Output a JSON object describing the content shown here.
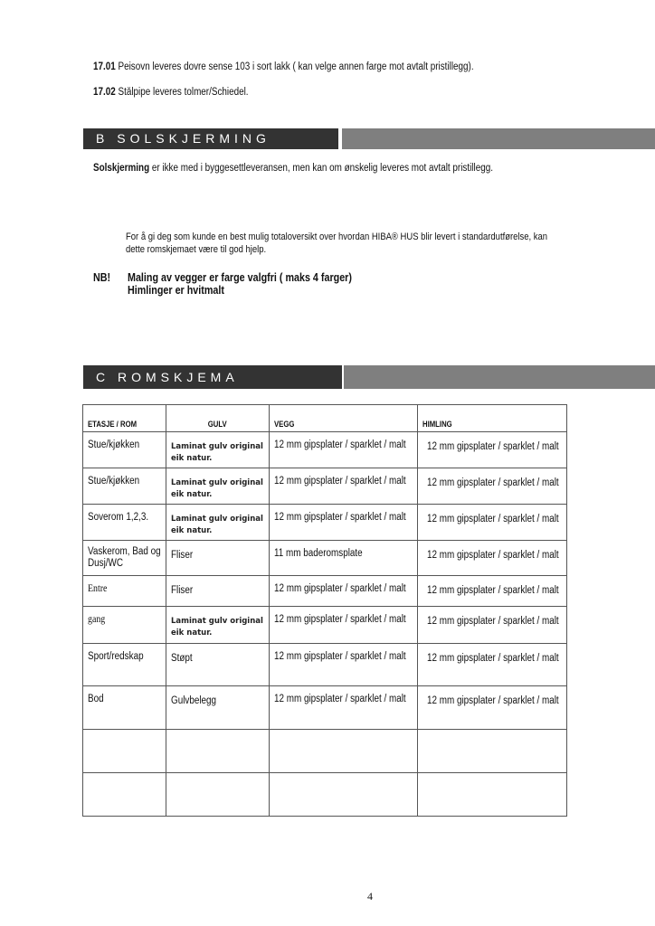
{
  "items": [
    {
      "number": "17.01",
      "text": "Peisovn leveres dovre sense 103 i sort lakk ( kan velge annen farge mot avtalt pristillegg)."
    },
    {
      "number": "17.02",
      "text": "Stålpipe leveres tolmer/Schiedel."
    }
  ],
  "section_b": {
    "title": "B   SOLSKJERMING",
    "lead_bold": "Solskjerming",
    "lead_text": " er ikke med i byggesettleveransen, men kan om ønskelig leveres mot avtalt pristillegg."
  },
  "info": {
    "line1": "For å gi deg som kunde en best mulig totaloversikt over hvordan HIBA® HUS blir levert i standardutførelse, kan",
    "line2": "dette romskjemaet være til god hjelp."
  },
  "nb": {
    "label": "NB!",
    "line1": "Maling av vegger er farge valgfri ( maks 4 farger)",
    "line2": "Himlinger er hvitmalt"
  },
  "section_c": {
    "title": "C   ROMSKJEMA"
  },
  "table": {
    "headers": [
      "ETASJE / ROM",
      "GULV",
      "VEGG",
      "HIMLING"
    ],
    "rows": [
      [
        "Stue/kjøkken",
        "Laminat gulv original eik natur.",
        "12 mm  gipsplater / sparklet / malt",
        "12 mm  gipsplater / sparklet / malt"
      ],
      [
        "Stue/kjøkken",
        "Laminat gulv original eik natur.",
        "12 mm  gipsplater / sparklet / malt",
        "12 mm  gipsplater / sparklet / malt"
      ],
      [
        "Soverom 1,2,3.",
        "Laminat gulv original eik natur.",
        "12 mm  gipsplater / sparklet / malt",
        "12 mm  gipsplater / sparklet / malt"
      ],
      [
        "Vaskerom, Bad og Dusj/WC",
        "Fliser",
        "11 mm baderomsplate",
        "12 mm  gipsplater / sparklet / malt"
      ],
      [
        "Entre",
        "Fliser",
        "12 mm  gipsplater / sparklet / malt",
        "12 mm  gipsplater / sparklet / malt"
      ],
      [
        "gang",
        "Laminat gulv original eik natur.",
        "12 mm  gipsplater / sparklet / malt",
        "12 mm  gipsplater / sparklet / malt"
      ],
      [
        "Sport/redskap",
        "Støpt",
        "12 mm  gipsplater / sparklet / malt",
        "12 mm  gipsplater / sparklet / malt"
      ],
      [
        "Bod",
        "Gulvbelegg",
        "12 mm  gipsplater / sparklet / malt",
        "12 mm  gipsplater / sparklet / malt"
      ],
      [
        "",
        "",
        "",
        ""
      ],
      [
        "",
        "",
        "",
        ""
      ]
    ]
  },
  "page_number": "4",
  "colors": {
    "bar_dark": "#333333",
    "bar_gray": "#7f7f7f"
  }
}
